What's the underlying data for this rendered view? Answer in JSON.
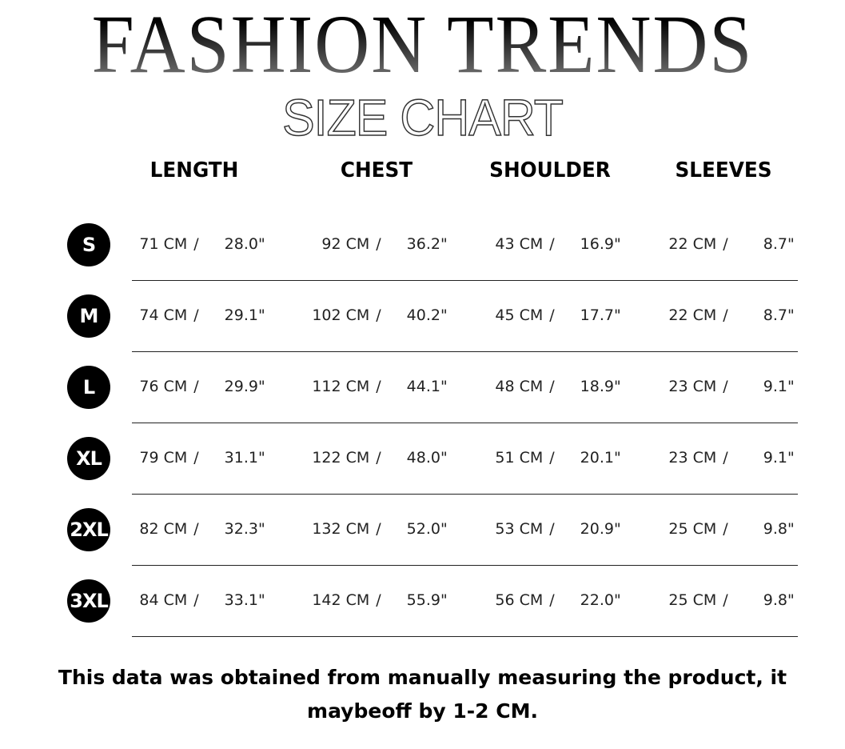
{
  "title": "FASHION TRENDS",
  "subtitle": "SIZE CHART",
  "columns": [
    "LENGTH",
    "CHEST",
    "SHOULDER",
    "SLEEVES"
  ],
  "rows": [
    {
      "size": "S",
      "cells": [
        [
          "71 CM",
          "28.0\""
        ],
        [
          "92 CM",
          "36.2\""
        ],
        [
          "43 CM",
          "16.9\""
        ],
        [
          "22 CM",
          "8.7\""
        ]
      ]
    },
    {
      "size": "M",
      "cells": [
        [
          "74 CM",
          "29.1\""
        ],
        [
          "102 CM",
          "40.2\""
        ],
        [
          "45 CM",
          "17.7\""
        ],
        [
          "22 CM",
          "8.7\""
        ]
      ]
    },
    {
      "size": "L",
      "cells": [
        [
          "76 CM",
          "29.9\""
        ],
        [
          "112 CM",
          "44.1\""
        ],
        [
          "48 CM",
          "18.9\""
        ],
        [
          "23 CM",
          "9.1\""
        ]
      ]
    },
    {
      "size": "XL",
      "cells": [
        [
          "79 CM",
          "31.1\""
        ],
        [
          "122 CM",
          "48.0\""
        ],
        [
          "51 CM",
          "20.1\""
        ],
        [
          "23 CM",
          "9.1\""
        ]
      ]
    },
    {
      "size": "2XL",
      "cells": [
        [
          "82 CM",
          "32.3\""
        ],
        [
          "132 CM",
          "52.0\""
        ],
        [
          "53 CM",
          "20.9\""
        ],
        [
          "25 CM",
          "9.8\""
        ]
      ]
    },
    {
      "size": "3XL",
      "cells": [
        [
          "84 CM",
          "33.1\""
        ],
        [
          "142 CM",
          "55.9\""
        ],
        [
          "56 CM",
          "22.0\""
        ],
        [
          "25 CM",
          "9.8\""
        ]
      ]
    }
  ],
  "footnote": "This data was obtained from manually measuring the product, it maybeoff by 1-2 CM."
}
